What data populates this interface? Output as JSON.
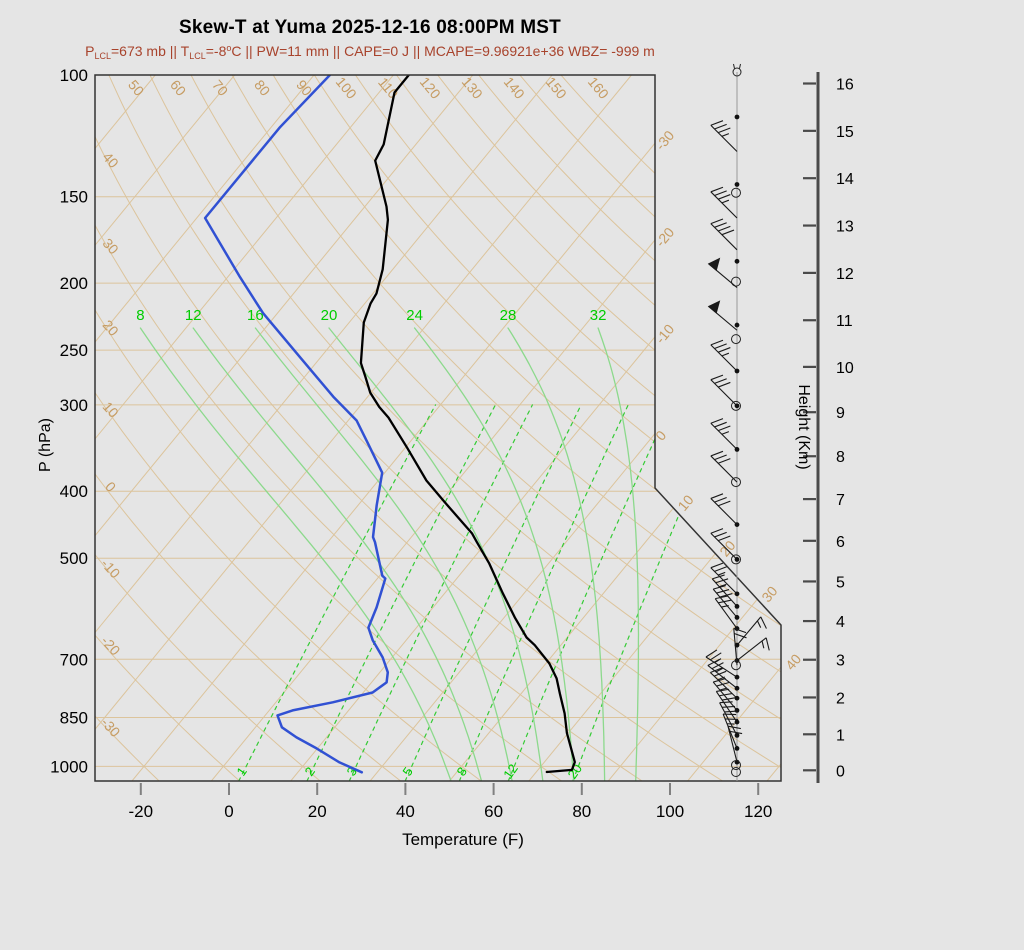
{
  "title": "Skew-T at Yuma 2025-12-16 08:00PM MST",
  "subtitle": {
    "color": "#a8432c",
    "segments": [
      {
        "t": "P",
        "s": "n"
      },
      {
        "t": "LCL",
        "s": "sub"
      },
      {
        "t": "=673 mb || T",
        "s": "n"
      },
      {
        "t": "LCL",
        "s": "sub"
      },
      {
        "t": "=-8",
        "s": "n"
      },
      {
        "t": "o",
        "s": "sup"
      },
      {
        "t": "C || PW=11 mm || CAPE=0 J || MCAPE=9.96921e+36 WBZ= -999 m",
        "s": "n"
      }
    ]
  },
  "chart_data": {
    "type": "line",
    "subtype": "skewt-log-p-sounding",
    "station": "Yuma",
    "datetime": "2025-12-16 08:00PM MST",
    "axes": {
      "pressure": {
        "label": "P (hPa)",
        "ticks": [
          100,
          150,
          200,
          250,
          300,
          400,
          500,
          700,
          850,
          1000
        ],
        "range": [
          100,
          1050
        ],
        "scale": "log"
      },
      "temperature": {
        "label": "Temperature (F)",
        "ticks": [
          -20,
          0,
          20,
          40,
          60,
          80,
          100,
          120
        ],
        "unit": "F"
      },
      "height": {
        "label": "Height (Km)",
        "ticks": [
          0,
          1,
          2,
          3,
          4,
          5,
          6,
          7,
          8,
          9,
          10,
          11,
          12,
          13,
          14,
          15,
          16
        ],
        "unit": "km"
      }
    },
    "background": {
      "isotherms_c": {
        "start": -120,
        "end": 50,
        "step": 10,
        "labels_right_edge": [
          -30,
          -20,
          -10,
          0
        ],
        "labels_diagonal_edge": [
          10,
          20,
          30,
          40
        ]
      },
      "dry_adiabats_c": {
        "start": -30,
        "end": 160,
        "step": 10,
        "labels_top_edge": [
          50,
          60,
          70,
          80,
          90,
          100,
          110,
          120,
          130,
          140,
          150,
          160
        ],
        "labels_left_edge": [
          40,
          30,
          20,
          10,
          0,
          -10,
          -20,
          -30
        ]
      },
      "mixing_ratio_g_kg": [
        1,
        2,
        3,
        5,
        8,
        12,
        20
      ],
      "moist_adiabats_c": [
        8,
        12,
        16,
        20,
        24,
        28,
        32
      ]
    },
    "temperature_profile_pF": [
      [
        100,
        -90.5
      ],
      [
        106,
        -90.5
      ],
      [
        126,
        -83.3
      ],
      [
        133,
        -82.2
      ],
      [
        155,
        -71.1
      ],
      [
        162,
        -68.3
      ],
      [
        191,
        -60.3
      ],
      [
        207,
        -57.2
      ],
      [
        214,
        -56.7
      ],
      [
        228,
        -54.7
      ],
      [
        261,
        -47.8
      ],
      [
        273,
        -44.3
      ],
      [
        288,
        -40.2
      ],
      [
        302,
        -35.5
      ],
      [
        313,
        -31.4
      ],
      [
        346,
        -21.6
      ],
      [
        386,
        -11.1
      ],
      [
        415,
        -2.9
      ],
      [
        460,
        9.0
      ],
      [
        474,
        11.8
      ],
      [
        509,
        18.6
      ],
      [
        562,
        27.2
      ],
      [
        609,
        34.4
      ],
      [
        651,
        40.8
      ],
      [
        668,
        44.1
      ],
      [
        710,
        50.8
      ],
      [
        746,
        55.2
      ],
      [
        784,
        58.7
      ],
      [
        838,
        63.5
      ],
      [
        895,
        67.7
      ],
      [
        956,
        72.6
      ],
      [
        986,
        74.9
      ],
      [
        1012,
        75.7
      ],
      [
        1019,
        70.4
      ]
    ],
    "dewpoint_profile_pF": [
      [
        100,
        -108.4
      ],
      [
        119,
        -110.0
      ],
      [
        161,
        -110.1
      ],
      [
        196,
        -91.2
      ],
      [
        221,
        -79.3
      ],
      [
        256,
        -62.7
      ],
      [
        292,
        -47.8
      ],
      [
        316,
        -38.1
      ],
      [
        341,
        -31.3
      ],
      [
        376,
        -22.6
      ],
      [
        419,
        -17.8
      ],
      [
        466,
        -12.7
      ],
      [
        474,
        -11.3
      ],
      [
        530,
        -3.4
      ],
      [
        535,
        -2.2
      ],
      [
        589,
        1.2
      ],
      [
        630,
        3.1
      ],
      [
        657,
        6.4
      ],
      [
        696,
        11.9
      ],
      [
        731,
        15.8
      ],
      [
        756,
        17.4
      ],
      [
        782,
        16.1
      ],
      [
        808,
        8.9
      ],
      [
        830,
        1.3
      ],
      [
        844,
        -1.2
      ],
      [
        878,
        2.0
      ],
      [
        908,
        7.2
      ],
      [
        942,
        13.8
      ],
      [
        987,
        21.6
      ],
      [
        1020,
        28.5
      ]
    ],
    "winds": [
      {
        "p": 99,
        "spd": 0,
        "dir": 0,
        "mk": "calmtop"
      },
      {
        "p": 115,
        "spd": 0,
        "dir": 0,
        "mk": "dot"
      },
      {
        "p": 129,
        "spd": 35,
        "dir": 315,
        "mk": "none"
      },
      {
        "p": 144,
        "spd": 0,
        "dir": 0,
        "mk": "dot"
      },
      {
        "p": 148,
        "spd": 0,
        "dir": 0,
        "mk": "circle"
      },
      {
        "p": 161,
        "spd": 35,
        "dir": 315,
        "mk": "none"
      },
      {
        "p": 179,
        "spd": 40,
        "dir": 315,
        "mk": "none"
      },
      {
        "p": 186,
        "spd": 0,
        "dir": 0,
        "mk": "dot"
      },
      {
        "p": 199,
        "spd": 0,
        "dir": 0,
        "mk": "circle"
      },
      {
        "p": 203,
        "spd": 50,
        "dir": 310,
        "mk": "none"
      },
      {
        "p": 230,
        "spd": 0,
        "dir": 0,
        "mk": "dot"
      },
      {
        "p": 234,
        "spd": 50,
        "dir": 310,
        "mk": "none"
      },
      {
        "p": 241,
        "spd": 0,
        "dir": 0,
        "mk": "circle"
      },
      {
        "p": 268,
        "spd": 35,
        "dir": 315,
        "mk": "dot"
      },
      {
        "p": 301,
        "spd": 30,
        "dir": 315,
        "mk": "circledot"
      },
      {
        "p": 348,
        "spd": 35,
        "dir": 315,
        "mk": "dot"
      },
      {
        "p": 388,
        "spd": 30,
        "dir": 315,
        "mk": "circle"
      },
      {
        "p": 447,
        "spd": 30,
        "dir": 315,
        "mk": "dot"
      },
      {
        "p": 502,
        "spd": 30,
        "dir": 315,
        "mk": "circledot"
      },
      {
        "p": 563,
        "spd": 25,
        "dir": 315,
        "mk": "dot"
      },
      {
        "p": 587,
        "spd": 25,
        "dir": 318,
        "mk": "dot"
      },
      {
        "p": 609,
        "spd": 30,
        "dir": 320,
        "mk": "dot"
      },
      {
        "p": 632,
        "spd": 25,
        "dir": 324,
        "mk": "dot"
      },
      {
        "p": 668,
        "spd": 15,
        "dir": 40,
        "mk": "dot"
      },
      {
        "p": 703,
        "spd": 15,
        "dir": 52,
        "mk": "dot"
      },
      {
        "p": 714,
        "spd": 20,
        "dir": 355,
        "mk": "circle"
      },
      {
        "p": 743,
        "spd": 25,
        "dir": 303,
        "mk": "dot"
      },
      {
        "p": 771,
        "spd": 25,
        "dir": 308,
        "mk": "dot"
      },
      {
        "p": 797,
        "spd": 25,
        "dir": 314,
        "mk": "dot"
      },
      {
        "p": 830,
        "spd": 25,
        "dir": 320,
        "mk": "dot"
      },
      {
        "p": 863,
        "spd": 30,
        "dir": 326,
        "mk": "dot"
      },
      {
        "p": 902,
        "spd": 30,
        "dir": 332,
        "mk": "dot"
      },
      {
        "p": 942,
        "spd": 25,
        "dir": 338,
        "mk": "dot"
      },
      {
        "p": 986,
        "spd": 20,
        "dir": 346,
        "mk": "dot"
      },
      {
        "p": 996,
        "spd": 0,
        "dir": 0,
        "mk": "circle"
      },
      {
        "p": 1019,
        "spd": 0,
        "dir": 0,
        "mk": "circle"
      }
    ],
    "colors": {
      "background": "#e5e5e5",
      "grid_tan": "#dcc49c",
      "grid_tan_label": "#c69c63",
      "mixing_ratio_green": "#35cb35",
      "moist_adiabat_green": "#8cd98c",
      "green_label": "#00cc00",
      "temperature_line": "#000000",
      "dewpoint_line": "#3151d3",
      "border": "#333333",
      "axis_gray": "#4a4a4a",
      "wind": "#1a1a1a"
    }
  }
}
